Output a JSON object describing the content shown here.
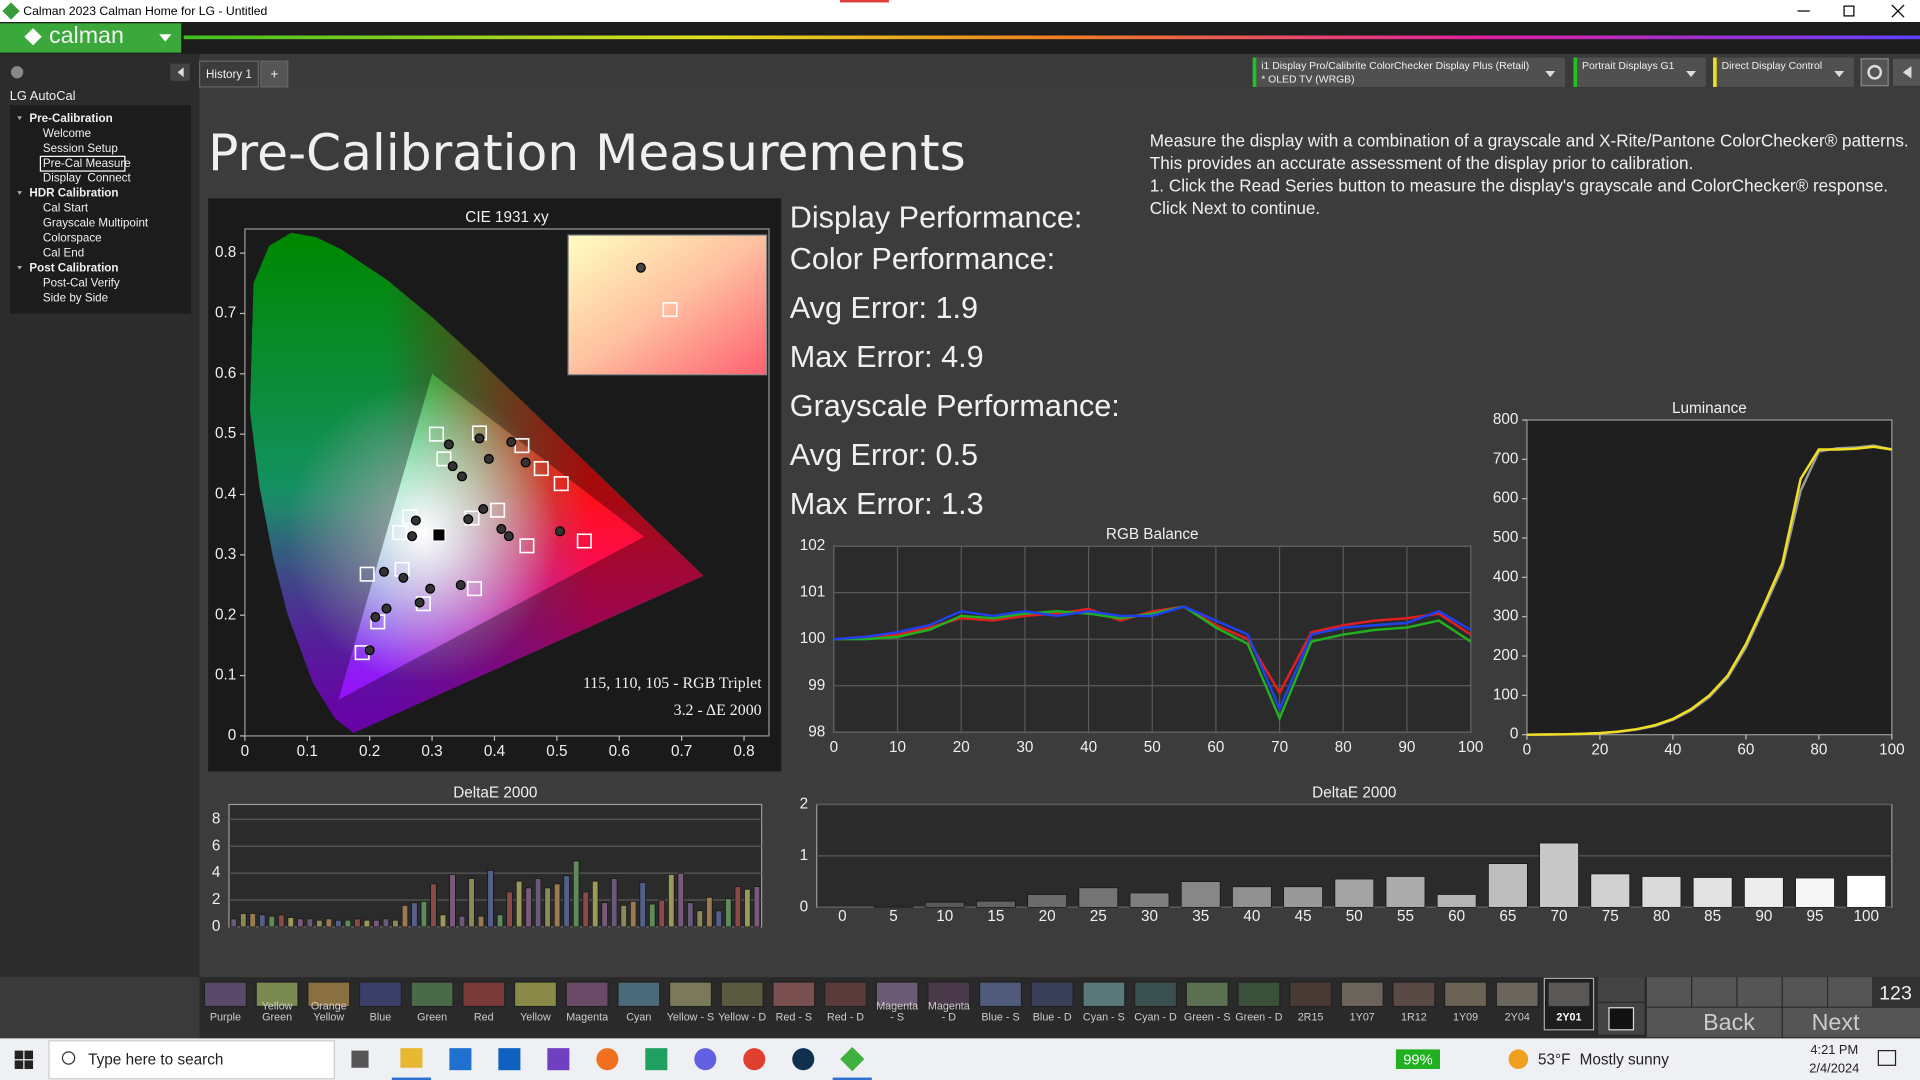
{
  "window": {
    "title": "Calman 2023 Calman Home for LG  - Untitled"
  },
  "app": {
    "logo": "calman",
    "tabs": [
      "History 1",
      "+"
    ],
    "devices": [
      {
        "lines": [
          "i1 Display Pro/Calibrite ColorChecker Display Plus (Retail)",
          "* OLED TV (WRGB)"
        ],
        "color": "#22c022"
      },
      {
        "lines": [
          "Portrait Displays G1"
        ],
        "color": "#22c022"
      },
      {
        "lines": [
          "Direct Display Control"
        ],
        "color": "#e8e020"
      }
    ]
  },
  "sidebar": {
    "title": "LG AutoCal",
    "sections": [
      {
        "label": "Pre-Calibration",
        "items": [
          {
            "label": "Welcome"
          },
          {
            "label": "Session Setup"
          },
          {
            "label": "Pre-Cal Measure",
            "selected": true
          },
          {
            "label": "Display  Connect"
          }
        ]
      },
      {
        "label": "HDR Calibration",
        "items": [
          {
            "label": "Cal Start"
          },
          {
            "label": "Grayscale Multipoint"
          },
          {
            "label": "Colorspace"
          },
          {
            "label": "Cal End"
          }
        ]
      },
      {
        "label": "Post Calibration",
        "items": [
          {
            "label": "Post-Cal Verify"
          },
          {
            "label": "Side by Side"
          }
        ]
      }
    ]
  },
  "page": {
    "heading": "Pre-Calibration Measurements",
    "description": [
      "Measure the display with a combination of a grayscale and X-Rite/Pantone ColorChecker® patterns.",
      "This provides an accurate assessment of the display prior to calibration.",
      "1. Click the Read Series button to measure the display's grayscale and ColorChecker® response.",
      "Click Next to continue."
    ],
    "performance": [
      "Display Performance:",
      "Color Performance:",
      "Avg Error: 1.9",
      "Max Error: 4.9",
      "Grayscale Performance:",
      "Avg Error: 0.5",
      "Max Error: 1.3"
    ]
  },
  "chart_data": [
    {
      "type": "scatter",
      "title": "CIE 1931 xy",
      "xlim": [
        0,
        0.84
      ],
      "ylim": [
        0,
        0.84
      ],
      "xticks": [
        0,
        0.1,
        0.2,
        0.3,
        0.4,
        0.5,
        0.6,
        0.7,
        0.8
      ],
      "yticks": [
        0,
        0.1,
        0.2,
        0.3,
        0.4,
        0.5,
        0.6,
        0.7,
        0.8
      ],
      "targets": {
        "x": [
          0.307,
          0.376,
          0.444,
          0.475,
          0.507,
          0.319,
          0.264,
          0.248,
          0.405,
          0.364,
          0.452,
          0.544,
          0.196,
          0.252,
          0.286,
          0.368,
          0.213,
          0.188
        ],
        "y": [
          0.5,
          0.502,
          0.481,
          0.443,
          0.418,
          0.459,
          0.363,
          0.337,
          0.374,
          0.361,
          0.315,
          0.323,
          0.268,
          0.276,
          0.219,
          0.244,
          0.189,
          0.138
        ]
      },
      "measured": {
        "x": [
          0.327,
          0.376,
          0.427,
          0.391,
          0.333,
          0.348,
          0.45,
          0.274,
          0.268,
          0.358,
          0.382,
          0.411,
          0.423,
          0.505,
          0.223,
          0.254,
          0.28,
          0.297,
          0.346,
          0.227,
          0.209,
          0.2
        ],
        "y": [
          0.483,
          0.493,
          0.487,
          0.459,
          0.447,
          0.43,
          0.453,
          0.357,
          0.331,
          0.359,
          0.376,
          0.343,
          0.331,
          0.339,
          0.272,
          0.262,
          0.221,
          0.244,
          0.25,
          0.211,
          0.197,
          0.142
        ]
      },
      "white_point": {
        "x": 0.311,
        "y": 0.333
      },
      "inset": {
        "xlim": [
          0.305,
          0.32
        ],
        "ylim": [
          0.322,
          0.337
        ],
        "measured": {
          "x": 0.3105,
          "y": 0.3335
        },
        "target": {
          "x": 0.3127,
          "y": 0.329
        }
      },
      "annotations": [
        "115, 110, 105 - RGB Triplet",
        "3.2 - ΔE 2000"
      ]
    },
    {
      "type": "line",
      "title": "RGB Balance",
      "grid": true,
      "xlim": [
        0,
        100
      ],
      "ylim": [
        98,
        102
      ],
      "xticks": [
        0,
        10,
        20,
        30,
        40,
        50,
        60,
        70,
        80,
        90,
        100
      ],
      "yticks": [
        98,
        99,
        100,
        101,
        102
      ],
      "x": [
        0,
        5,
        10,
        15,
        20,
        25,
        30,
        35,
        40,
        45,
        50,
        55,
        60,
        65,
        70,
        75,
        80,
        85,
        90,
        95,
        100
      ],
      "series": [
        {
          "name": "Red",
          "color": "#e02020",
          "values": [
            100,
            100.05,
            100.1,
            100.25,
            100.45,
            100.4,
            100.5,
            100.55,
            100.65,
            100.4,
            100.6,
            100.7,
            100.3,
            100.0,
            98.85,
            100.15,
            100.3,
            100.4,
            100.45,
            100.55,
            100.1
          ]
        },
        {
          "name": "Green",
          "color": "#20b020",
          "values": [
            100,
            100,
            100.05,
            100.2,
            100.5,
            100.45,
            100.55,
            100.6,
            100.55,
            100.45,
            100.55,
            100.7,
            100.25,
            99.9,
            98.3,
            99.95,
            100.1,
            100.2,
            100.25,
            100.4,
            99.95
          ]
        },
        {
          "name": "Blue",
          "color": "#2040f0",
          "values": [
            100,
            100.05,
            100.15,
            100.3,
            100.6,
            100.5,
            100.6,
            100.5,
            100.6,
            100.5,
            100.5,
            100.7,
            100.4,
            100.1,
            98.5,
            100.1,
            100.25,
            100.3,
            100.35,
            100.6,
            100.2
          ]
        }
      ]
    },
    {
      "type": "line",
      "title": "Luminance",
      "grid": false,
      "xlim": [
        0,
        100
      ],
      "ylim": [
        0,
        800
      ],
      "xticks": [
        0,
        20,
        40,
        60,
        80,
        100
      ],
      "yticks": [
        0,
        100,
        200,
        300,
        400,
        500,
        600,
        700,
        800
      ],
      "x": [
        0,
        5,
        10,
        15,
        20,
        25,
        30,
        35,
        40,
        45,
        50,
        55,
        60,
        65,
        70,
        75,
        80,
        85,
        90,
        95,
        100
      ],
      "series": [
        {
          "name": "Target",
          "color": "#9a9a9a",
          "values": [
            0,
            0.5,
            1,
            2,
            4,
            7,
            13,
            22,
            38,
            62,
            96,
            145,
            222,
            322,
            425,
            620,
            720,
            728,
            730,
            735,
            725
          ]
        },
        {
          "name": "Measured",
          "color": "#f0e020",
          "values": [
            0,
            0.5,
            1,
            2,
            4,
            8,
            14,
            24,
            40,
            65,
            100,
            150,
            230,
            330,
            436,
            650,
            725,
            725,
            727,
            732,
            725
          ]
        }
      ]
    },
    {
      "type": "bar",
      "title": "DeltaE 2000",
      "grid": true,
      "ylim": [
        0,
        9.1
      ],
      "yticks": [
        0,
        2,
        4,
        6,
        8
      ],
      "palette": [
        "#6a5a7a",
        "#8a8a58",
        "#9a7a50",
        "#55608a",
        "#5f8a5a",
        "#8a4a48",
        "#9a9a58",
        "#7a5a7a"
      ],
      "values": [
        0.6,
        1.0,
        1.0,
        0.9,
        0.8,
        0.9,
        0.7,
        0.6,
        0.6,
        0.5,
        0.6,
        0.5,
        0.5,
        0.6,
        0.5,
        0.5,
        0.6,
        0.5,
        1.6,
        1.8,
        1.9,
        3.2,
        0.9,
        3.9,
        0.8,
        3.6,
        0.8,
        4.2,
        0.9,
        2.6,
        3.4,
        2.9,
        3.6,
        2.9,
        3.2,
        3.8,
        4.9,
        2.6,
        3.4,
        1.8,
        3.6,
        1.6,
        1.9,
        3.3,
        1.7,
        2.0,
        3.9,
        4.0,
        1.8,
        1.2,
        2.2,
        1.2,
        2.1,
        3.0,
        2.8,
        3.0
      ]
    },
    {
      "type": "bar",
      "title": "DeltaE 2000",
      "grid": true,
      "ylim": [
        0,
        2
      ],
      "yticks": [
        0,
        1,
        2
      ],
      "categories": [
        0,
        5,
        10,
        15,
        20,
        25,
        30,
        35,
        40,
        45,
        50,
        55,
        60,
        65,
        70,
        75,
        80,
        85,
        90,
        95,
        100
      ],
      "values": [
        0,
        0.02,
        0.1,
        0.12,
        0.25,
        0.38,
        0.28,
        0.5,
        0.4,
        0.4,
        0.55,
        0.6,
        0.25,
        0.85,
        1.25,
        0.65,
        0.6,
        0.58,
        0.58,
        0.57,
        0.62
      ]
    }
  ],
  "swatches": [
    {
      "lines": [
        "Purple"
      ],
      "color": "#5a4a6a"
    },
    {
      "lines": [
        "Yellow",
        "Green"
      ],
      "color": "#7a8a50"
    },
    {
      "lines": [
        "Orange",
        "Yellow"
      ],
      "color": "#8a7040"
    },
    {
      "lines": [
        "Blue"
      ],
      "color": "#3a3f6a"
    },
    {
      "lines": [
        "Green"
      ],
      "color": "#4a6a48"
    },
    {
      "lines": [
        "Red"
      ],
      "color": "#7a3a38"
    },
    {
      "lines": [
        "Yellow"
      ],
      "color": "#8a8a48"
    },
    {
      "lines": [
        "Magenta"
      ],
      "color": "#6a4a66"
    },
    {
      "lines": [
        "Cyan"
      ],
      "color": "#4a6a7a"
    },
    {
      "lines": [
        "Yellow - S"
      ],
      "color": "#7a7a5a"
    },
    {
      "lines": [
        "Yellow - D"
      ],
      "color": "#5a5a40"
    },
    {
      "lines": [
        "Red - S"
      ],
      "color": "#7a5050"
    },
    {
      "lines": [
        "Red - D"
      ],
      "color": "#5a3a3a"
    },
    {
      "lines": [
        "Magenta",
        "- S"
      ],
      "color": "#6a5a72"
    },
    {
      "lines": [
        "Magenta",
        "- D"
      ],
      "color": "#4a3a4a"
    },
    {
      "lines": [
        "Blue - S"
      ],
      "color": "#505a7a"
    },
    {
      "lines": [
        "Blue - D"
      ],
      "color": "#3a3f5a"
    },
    {
      "lines": [
        "Cyan - S"
      ],
      "color": "#5a7a7a"
    },
    {
      "lines": [
        "Cyan - D"
      ],
      "color": "#3a5050"
    },
    {
      "lines": [
        "Green - S"
      ],
      "color": "#5a7050"
    },
    {
      "lines": [
        "Green - D"
      ],
      "color": "#3a503a"
    },
    {
      "lines": [
        "2R15"
      ],
      "color": "#4a3a36"
    },
    {
      "lines": [
        "1Y07"
      ],
      "color": "#6a645a"
    },
    {
      "lines": [
        "1R12"
      ],
      "color": "#5a4a46"
    },
    {
      "lines": [
        "1Y09"
      ],
      "color": "#6a6254"
    },
    {
      "lines": [
        "2Y04"
      ],
      "color": "#6a665e"
    },
    {
      "lines": [
        "2Y01"
      ],
      "color": "#5a5856",
      "selected": true
    }
  ],
  "controls": {
    "counter": "123",
    "back": "Back",
    "next": "Next"
  },
  "taskbar": {
    "search": "Type here to search",
    "battery": "99%",
    "temperature": "53°F",
    "weather": "Mostly sunny",
    "time": "4:21 PM",
    "date": "2/4/2024"
  }
}
